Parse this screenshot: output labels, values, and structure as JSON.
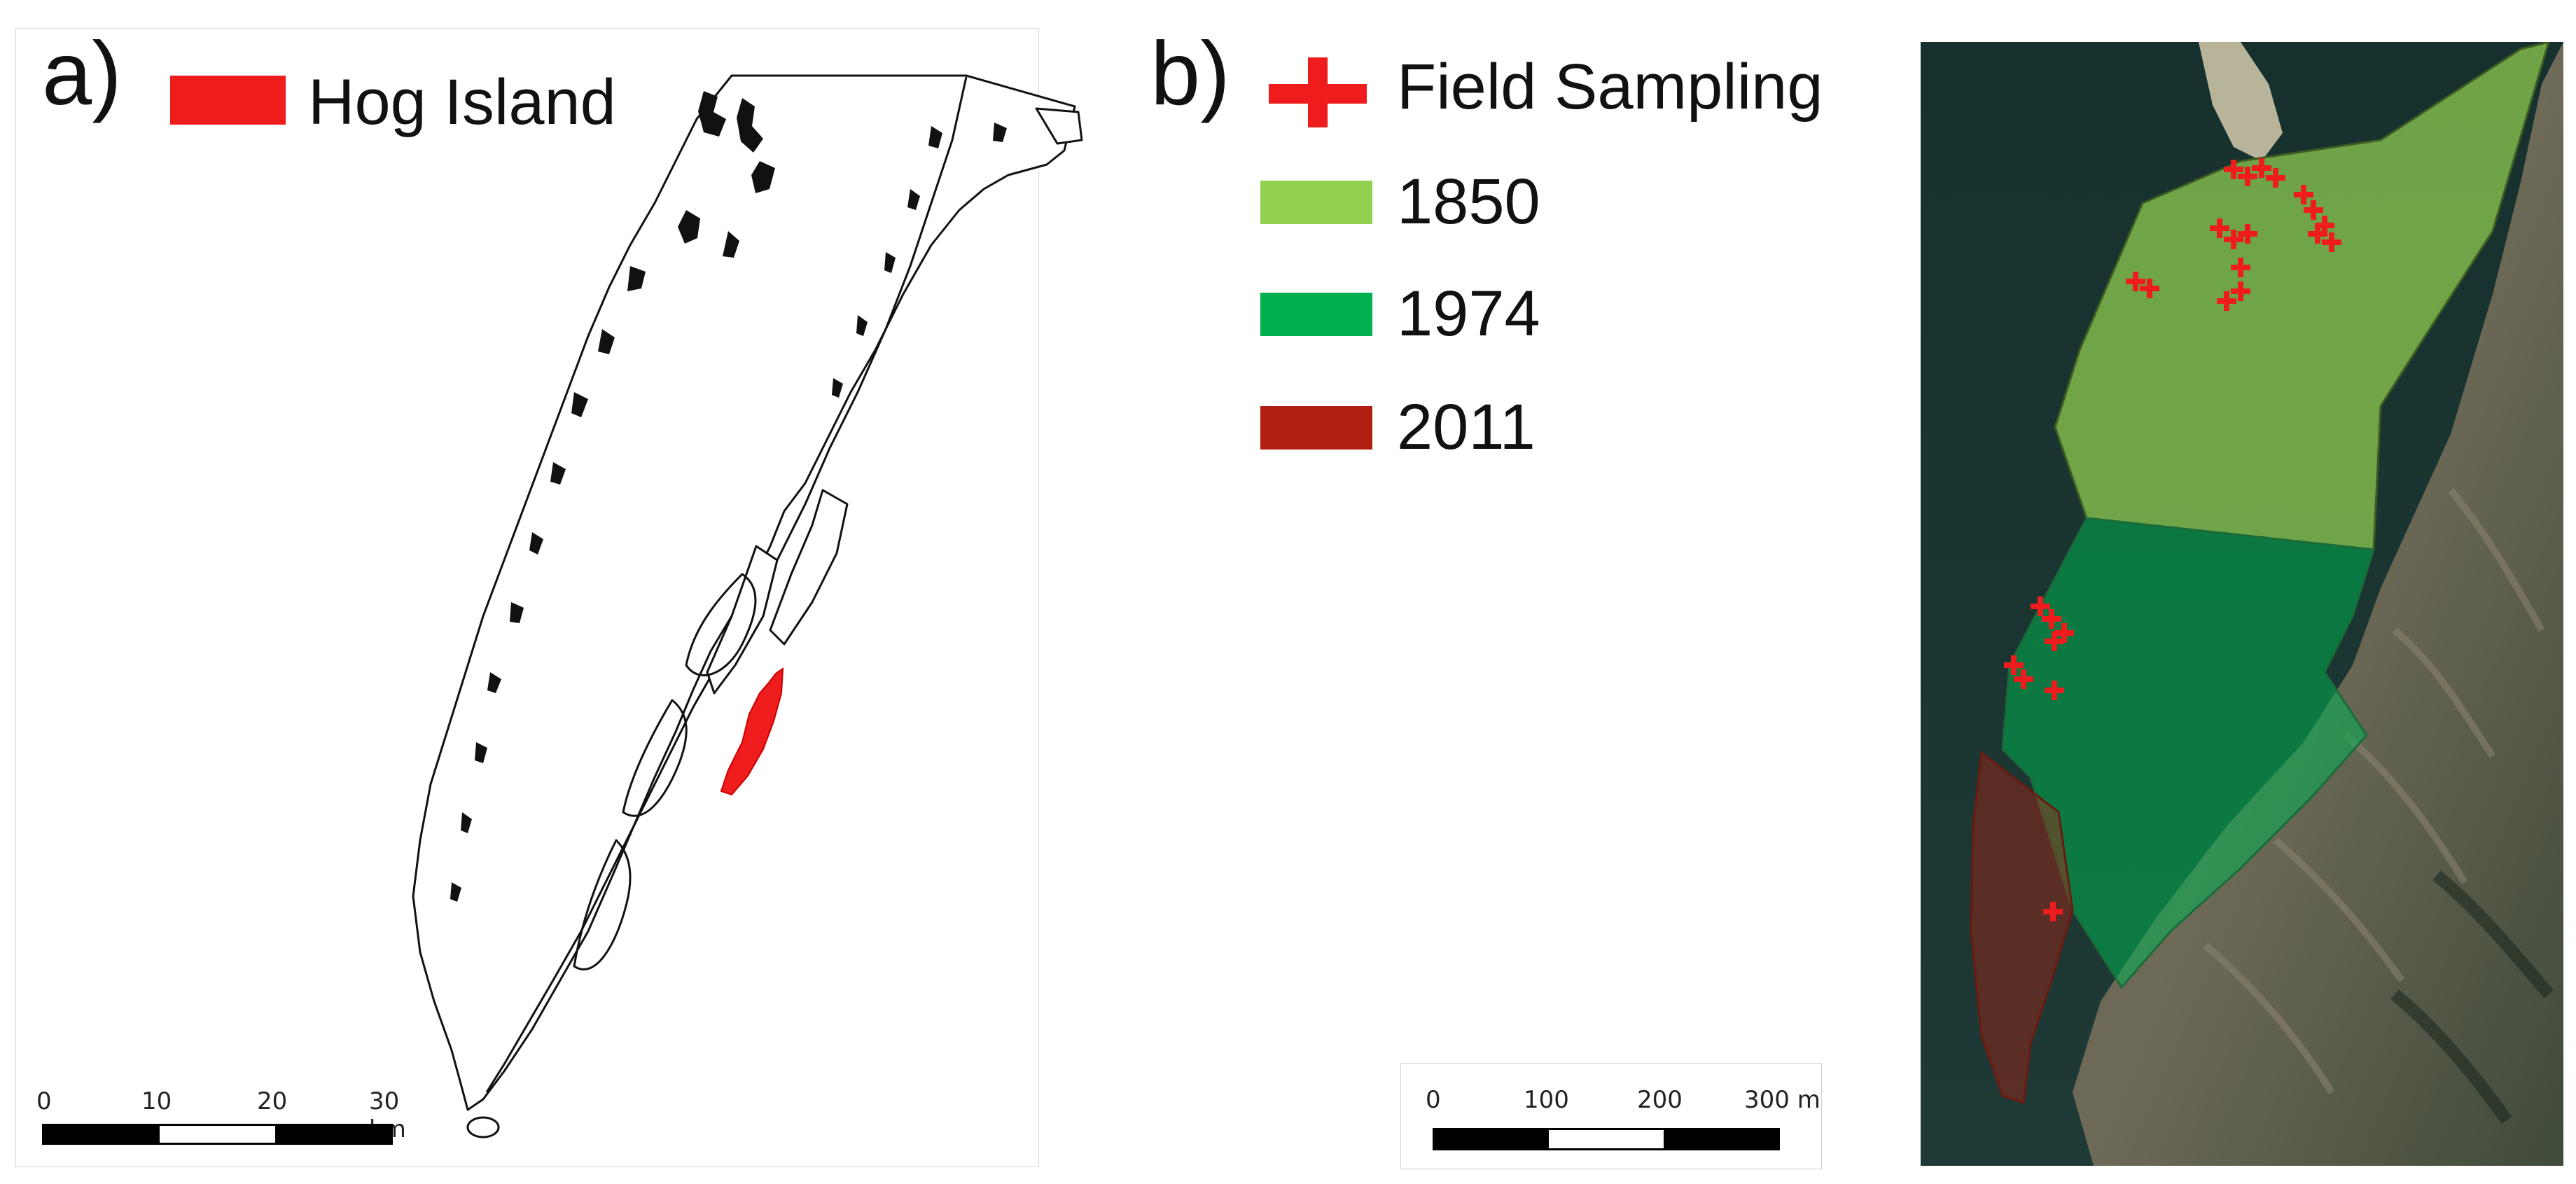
{
  "panel_a": {
    "label": "a)",
    "legend": {
      "label": "Hog Island",
      "color": "#ee1c1c"
    },
    "scalebar": {
      "ticks": [
        "0",
        "10",
        "20",
        "30 km"
      ]
    }
  },
  "panel_b": {
    "label": "b)",
    "legend": [
      {
        "label": "Field Sampling",
        "symbol": "cross-icon",
        "color": "#ee1c1c"
      },
      {
        "label": "1850",
        "color": "#92d050"
      },
      {
        "label": "1974",
        "color": "#00b050"
      },
      {
        "label": "2011",
        "color": "#b01f10"
      }
    ],
    "scalebar": {
      "ticks": [
        "0",
        "100",
        "200",
        "300 m"
      ]
    },
    "sample_clusters": [
      "1850 area",
      "1974 area",
      "2011 area"
    ]
  }
}
